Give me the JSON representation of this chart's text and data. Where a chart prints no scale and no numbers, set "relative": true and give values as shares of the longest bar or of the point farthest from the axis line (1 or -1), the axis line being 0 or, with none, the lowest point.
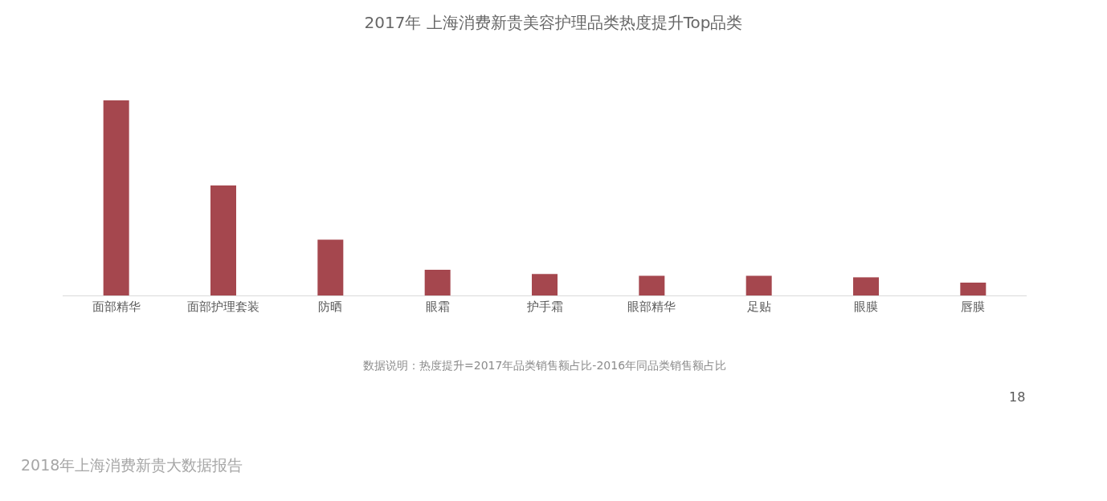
{
  "chart_data": {
    "type": "bar",
    "title": "2017年 上海消费新贵美容护理品类热度提升Top品类",
    "categories": [
      "面部精华",
      "面部护理套装",
      "防晒",
      "眼霜",
      "护手霜",
      "眼部精华",
      "足贴",
      "眼膜",
      "唇膜"
    ],
    "values": [
      1,
      0.564,
      0.286,
      0.132,
      0.11,
      0.101,
      0.101,
      0.093,
      0.066
    ],
    "color": "#a5474e",
    "relative": true,
    "annotations": [
      "数据说明：热度提升=2017年品类销售额占比-2016年同品类销售额占比",
      "18",
      "2018年上海消费新贵大数据报告"
    ]
  }
}
